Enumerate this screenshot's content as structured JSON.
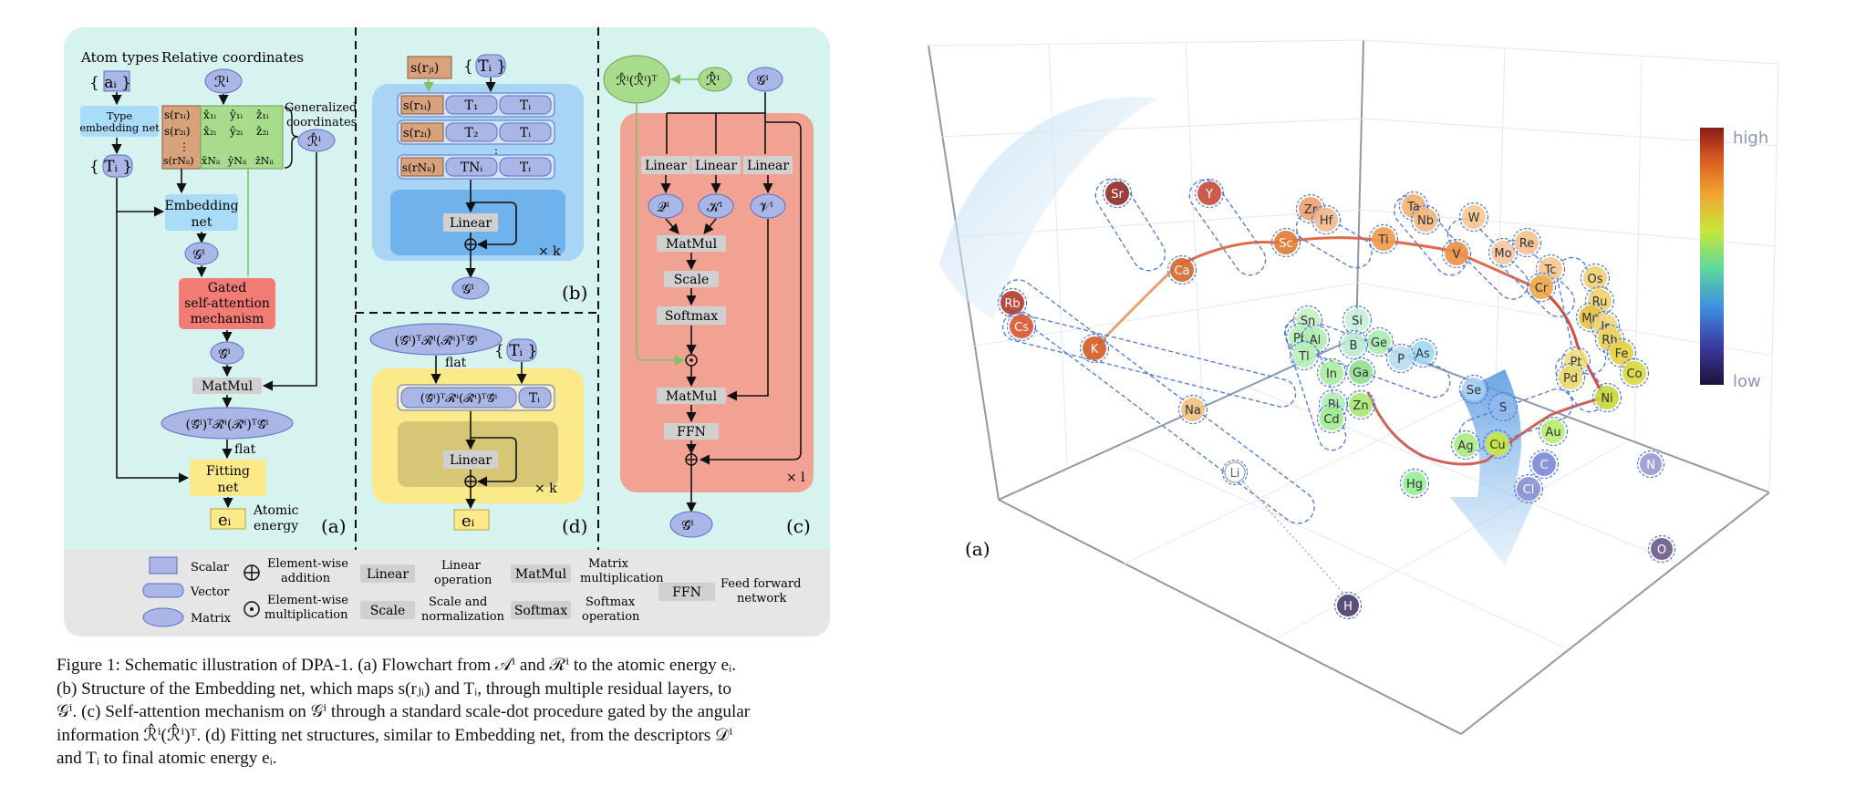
{
  "left_panel": {
    "a": {
      "atom_types_label": "Atom types",
      "relative_coordinates_label": "Relative coordinates",
      "a_i_set": "{ aᵢ }",
      "R_i": "ℛⁱ",
      "type_embedding_net": [
        "Type",
        "embedding net"
      ],
      "T_i_set": "{ Tᵢ }",
      "s_rows": [
        "s(r₁ᵢ)",
        "s(r₂ᵢ)",
        "s(rNᵢᵢ)"
      ],
      "xyz_rows": [
        [
          "x̂₁ᵢ",
          "ŷ₁ᵢ",
          "ẑ₁ᵢ"
        ],
        [
          "x̂₂ᵢ",
          "ŷ₂ᵢ",
          "ẑ₂ᵢ"
        ],
        [
          "x̂Nᵢᵢ",
          "ŷNᵢᵢ",
          "ẑNᵢᵢ"
        ]
      ],
      "generalized_coordinates": [
        "Generalized",
        "coordinates"
      ],
      "R_hat_i": "ℛ̂ⁱ",
      "embedding_net": [
        "Embedding",
        "net"
      ],
      "G_i": "𝒢ⁱ",
      "gated_attention": [
        "Gated",
        "self-attention",
        "mechanism"
      ],
      "G_hat_i": "𝒢̂ⁱ",
      "matmul": "MatMul",
      "descriptor": "(𝒢̂ⁱ)ᵀℛ̂ⁱ(ℛ̂ⁱ)ᵀ𝒢̂ⁱ",
      "flat": "flat",
      "fitting_net": [
        "Fitting",
        "net"
      ],
      "e_i": "eᵢ",
      "atomic_energy": [
        "Atomic",
        "energy"
      ],
      "label": "(a)"
    },
    "b": {
      "s_rji": "s(rⱼᵢ)",
      "T_i_set": "{ Tᵢ }",
      "rows": [
        [
          "s(r₁ᵢ)",
          "T₁",
          "Tᵢ"
        ],
        [
          "s(r₂ᵢ)",
          "T₂",
          "Tᵢ"
        ],
        [
          "s(rNᵢᵢ)",
          "TNᵢ",
          "Tᵢ"
        ]
      ],
      "linear": "Linear",
      "times_k": "× k",
      "G_i": "𝒢ⁱ",
      "label": "(b)"
    },
    "c": {
      "RRT": "ℛ̂ⁱ(ℛ̂ⁱ)ᵀ",
      "R_hat_i": "ℛ̂ⁱ",
      "G_i": "𝒢ⁱ",
      "linear": "Linear",
      "Q": "𝒬ⁱ",
      "K": "𝒦ⁱ",
      "V": "𝒱ⁱ",
      "matmul": "MatMul",
      "scale": "Scale",
      "softmax": "Softmax",
      "ffn": "FFN",
      "times_l": "× l",
      "G_hat_i": "𝒢̂ⁱ",
      "label": "(c)"
    },
    "d": {
      "descriptor": "(𝒢̂ⁱ)ᵀℛ̂ⁱ(ℛ̂ⁱ)ᵀ𝒢̂ⁱ",
      "flat": "flat",
      "T_i_set": "{ Tᵢ }",
      "linear": "Linear",
      "times_k": "× k",
      "T_i": "Tᵢ",
      "e_i": "eᵢ",
      "label": "(d)"
    },
    "legend": {
      "scalar": "Scalar",
      "vector": "Vector",
      "matrix": "Matrix",
      "elementwise_addition": [
        "Element-wise",
        "addition"
      ],
      "elementwise_multiplication": [
        "Element-wise",
        "multiplication"
      ],
      "linear": "Linear",
      "linear_desc": [
        "Linear",
        "operation"
      ],
      "scale": "Scale",
      "scale_desc": [
        "Scale and",
        "normalization"
      ],
      "matmul": "MatMul",
      "matmul_desc": [
        "Matrix",
        "multiplication"
      ],
      "softmax": "Softmax",
      "softmax_desc": [
        "Softmax",
        "operation"
      ],
      "ffn": "FFN",
      "ffn_desc": [
        "Feed forward",
        "network"
      ]
    }
  },
  "caption": {
    "lines": [
      "Figure 1: Schematic illustration of DPA-1. (a) Flowchart from 𝒜ⁱ and ℛⁱ to the atomic energy eᵢ.",
      "(b) Structure of the Embedding net, which maps s(rⱼᵢ) and Tᵢ, through multiple residual layers, to",
      "𝒢ⁱ. (c) Self-attention mechanism on 𝒢ⁱ through a standard scale-dot procedure gated by the angular",
      "information ℛ̂ⁱ(ℛ̂ⁱ)ᵀ. (d) Fitting net structures, similar to Embedding net, from the descriptors 𝒟ⁱ",
      "and Tᵢ to final atomic energy eᵢ."
    ]
  },
  "right_panel": {
    "label": "(a)",
    "colorbar_high": "high",
    "colorbar_low": "low",
    "elements": [
      {
        "sym": "Rb",
        "color": "#b03a2e"
      },
      {
        "sym": "Cs",
        "color": "#d9542c"
      },
      {
        "sym": "Sr",
        "color": "#8e2b25"
      },
      {
        "sym": "Y",
        "color": "#c94a3a"
      },
      {
        "sym": "Ca",
        "color": "#d2682d"
      },
      {
        "sym": "K",
        "color": "#d45a25"
      },
      {
        "sym": "Sc",
        "color": "#e07a32"
      },
      {
        "sym": "Zr",
        "color": "#f0a070"
      },
      {
        "sym": "Hf",
        "color": "#f3b890"
      },
      {
        "sym": "Ta",
        "color": "#f5b070"
      },
      {
        "sym": "Nb",
        "color": "#f3b880"
      },
      {
        "sym": "Ti",
        "color": "#ee9a4a"
      },
      {
        "sym": "V",
        "color": "#ec9040"
      },
      {
        "sym": "W",
        "color": "#f7c690"
      },
      {
        "sym": "Mo",
        "color": "#f7c8a0"
      },
      {
        "sym": "Re",
        "color": "#f5c090"
      },
      {
        "sym": "Tc",
        "color": "#f7c890"
      },
      {
        "sym": "Cr",
        "color": "#eaa84a"
      },
      {
        "sym": "Os",
        "color": "#f2d07a"
      },
      {
        "sym": "Ru",
        "color": "#f0d070"
      },
      {
        "sym": "Mn",
        "color": "#e8c040"
      },
      {
        "sym": "Ir",
        "color": "#f0d87a"
      },
      {
        "sym": "Rh",
        "color": "#ecd060"
      },
      {
        "sym": "Fe",
        "color": "#e6d040"
      },
      {
        "sym": "Pt",
        "color": "#f0e080"
      },
      {
        "sym": "Pd",
        "color": "#ecd870"
      },
      {
        "sym": "Co",
        "color": "#d8d840"
      },
      {
        "sym": "Ni",
        "color": "#c8d838"
      },
      {
        "sym": "Na",
        "color": "#f2c080"
      },
      {
        "sym": "Li",
        "color": "#ffffff"
      },
      {
        "sym": "Sn",
        "color": "#c8f0c0"
      },
      {
        "sym": "Si",
        "color": "#c8f0d8"
      },
      {
        "sym": "Pb",
        "color": "#b8f0b8"
      },
      {
        "sym": "Al",
        "color": "#b0ecb0"
      },
      {
        "sym": "Tl",
        "color": "#b8f0b8"
      },
      {
        "sym": "Ge",
        "color": "#a8ecb0"
      },
      {
        "sym": "As",
        "color": "#9ed8f0"
      },
      {
        "sym": "B",
        "color": "#b8ecd0"
      },
      {
        "sym": "P",
        "color": "#b8dcf0"
      },
      {
        "sym": "In",
        "color": "#a8eca0"
      },
      {
        "sym": "Ga",
        "color": "#90e090"
      },
      {
        "sym": "Se",
        "color": "#a8d0f0"
      },
      {
        "sym": "Bi",
        "color": "#b0ecb0"
      },
      {
        "sym": "Cd",
        "color": "#a0ec90"
      },
      {
        "sym": "Zn",
        "color": "#a8e870"
      },
      {
        "sym": "S",
        "color": "#8fb8f0"
      },
      {
        "sym": "Au",
        "color": "#b8ec70"
      },
      {
        "sym": "Ag",
        "color": "#a8ec80"
      },
      {
        "sym": "Cu",
        "color": "#c8e840"
      },
      {
        "sym": "C",
        "color": "#7a88d8"
      },
      {
        "sym": "Cl",
        "color": "#8a90d0"
      },
      {
        "sym": "Hg",
        "color": "#98ec98"
      },
      {
        "sym": "N",
        "color": "#9898d0"
      },
      {
        "sym": "O",
        "color": "#6a5a8a"
      },
      {
        "sym": "H",
        "color": "#4a3c6c"
      }
    ]
  }
}
